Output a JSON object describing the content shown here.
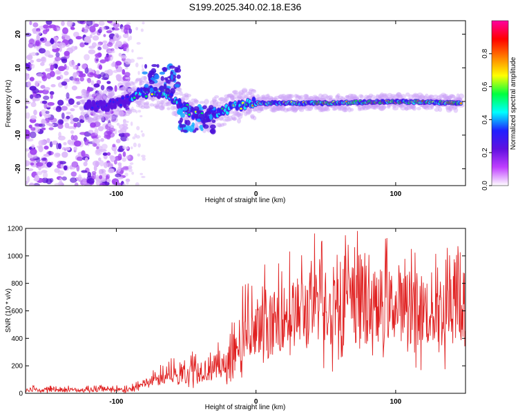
{
  "title": "S199.2025.340.02.18.E36",
  "colors": {
    "trace": "#e02020",
    "axis": "#000000"
  },
  "chart_data": [
    {
      "type": "heatmap",
      "name": "spectrogram",
      "xlabel": "Height of straight line (km)",
      "ylabel": "Frequency (Hz)",
      "xlim": [
        -165,
        150
      ],
      "ylim": [
        -25,
        24
      ],
      "x_ticks": [
        -100,
        0,
        100
      ],
      "x_tick_labels": [
        "-100",
        "0",
        "100"
      ],
      "y_ticks": [
        20,
        10,
        0,
        -10,
        -20
      ],
      "y_tick_labels": [
        "20",
        "10",
        "0",
        "-10",
        "-20"
      ],
      "ridge": [
        {
          "x": -122,
          "f": -1.5
        },
        {
          "x": -100,
          "f": -1.0
        },
        {
          "x": -85,
          "f": 2.0
        },
        {
          "x": -75,
          "f": 3.0
        },
        {
          "x": -62,
          "f": 2.0
        },
        {
          "x": -50,
          "f": -2.0
        },
        {
          "x": -40,
          "f": -5.0
        },
        {
          "x": -28,
          "f": -3.0
        },
        {
          "x": -15,
          "f": -1.5
        },
        {
          "x": 0,
          "f": -0.5
        },
        {
          "x": 50,
          "f": -0.5
        },
        {
          "x": 100,
          "f": 0.0
        },
        {
          "x": 145,
          "f": -0.5
        }
      ],
      "colorbar": {
        "label": "Normalized spectral amplitude",
        "range": [
          0,
          1
        ],
        "ticks": [
          0.0,
          0.2,
          0.4,
          0.6,
          0.8
        ],
        "tick_labels": [
          "0.0",
          "0.2",
          "0.4",
          "0.6",
          "0.8"
        ],
        "colors": [
          "#ffffff",
          "#c040ff",
          "#6010e0",
          "#2020ff",
          "#00ffff",
          "#00ff40",
          "#ffff00",
          "#ff8000",
          "#ff0000",
          "#ff00a0"
        ]
      }
    },
    {
      "type": "line",
      "name": "snr-trace",
      "xlabel": "Height of straight line (km)",
      "ylabel": "SNR (10 * v/v)",
      "xlim": [
        -165,
        150
      ],
      "ylim": [
        0,
        1200
      ],
      "x_ticks": [
        -100,
        0,
        100
      ],
      "x_tick_labels": [
        "-100",
        "0",
        "100"
      ],
      "y_ticks": [
        0,
        200,
        400,
        600,
        800,
        1000,
        1200
      ],
      "y_tick_labels": [
        "0",
        "200",
        "400",
        "600",
        "800",
        "1000",
        "1200"
      ],
      "envelope": [
        {
          "x": -165,
          "low": 0,
          "mid": 25,
          "high": 55
        },
        {
          "x": -90,
          "low": 0,
          "mid": 25,
          "high": 60
        },
        {
          "x": -78,
          "low": 20,
          "mid": 80,
          "high": 150
        },
        {
          "x": -60,
          "low": 30,
          "mid": 130,
          "high": 260
        },
        {
          "x": -40,
          "low": 40,
          "mid": 170,
          "high": 350
        },
        {
          "x": -20,
          "low": 60,
          "mid": 200,
          "high": 440
        },
        {
          "x": -10,
          "low": 80,
          "mid": 330,
          "high": 820
        },
        {
          "x": 0,
          "low": 100,
          "mid": 420,
          "high": 900
        },
        {
          "x": 20,
          "low": 200,
          "mid": 560,
          "high": 1050
        },
        {
          "x": 40,
          "low": 150,
          "mid": 620,
          "high": 1180
        },
        {
          "x": 70,
          "low": 100,
          "mid": 650,
          "high": 1200
        },
        {
          "x": 100,
          "low": 200,
          "mid": 640,
          "high": 1120
        },
        {
          "x": 130,
          "low": 100,
          "mid": 600,
          "high": 1140
        },
        {
          "x": 150,
          "low": 100,
          "mid": 620,
          "high": 1100
        }
      ],
      "series": [
        {
          "name": "SNR",
          "description": "noisy trace rising from ~25 to ~600"
        }
      ]
    }
  ]
}
